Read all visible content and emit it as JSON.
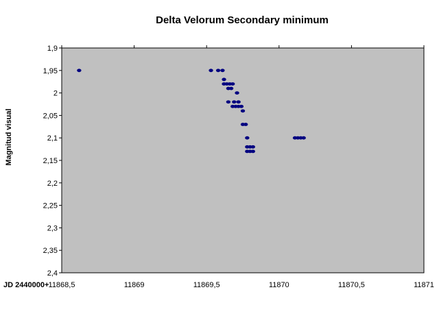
{
  "chart_data": {
    "type": "scatter",
    "title": "Delta Velorum Secondary minimum",
    "xlabel": "JD 2440000+",
    "ylabel": "Magnitud visual",
    "xlim": [
      11868.5,
      11871
    ],
    "ylim": [
      1.9,
      2.4
    ],
    "y_reversed": true,
    "grid": false,
    "legend": "none",
    "x_ticks": [
      {
        "value": 11868.5,
        "label": "11868,5"
      },
      {
        "value": 11869,
        "label": "11869"
      },
      {
        "value": 11869.5,
        "label": "11869,5"
      },
      {
        "value": 11870,
        "label": "11870"
      },
      {
        "value": 11870.5,
        "label": "11870,5"
      },
      {
        "value": 11871,
        "label": "11871"
      }
    ],
    "y_ticks": [
      {
        "value": 1.9,
        "label": "1,9"
      },
      {
        "value": 1.95,
        "label": "1,95"
      },
      {
        "value": 2.0,
        "label": "2"
      },
      {
        "value": 2.05,
        "label": "2,05"
      },
      {
        "value": 2.1,
        "label": "2,1"
      },
      {
        "value": 2.15,
        "label": "2,15"
      },
      {
        "value": 2.2,
        "label": "2,2"
      },
      {
        "value": 2.25,
        "label": "2,25"
      },
      {
        "value": 2.3,
        "label": "2,3"
      },
      {
        "value": 2.35,
        "label": "2,35"
      },
      {
        "value": 2.4,
        "label": "2,4"
      }
    ],
    "colors": {
      "plot_bg": "#c0c0c0",
      "marker": "#000080"
    },
    "series": [
      {
        "name": "Magnitud visual",
        "points": [
          [
            11868.62,
            1.95
          ],
          [
            11869.53,
            1.95
          ],
          [
            11869.58,
            1.95
          ],
          [
            11869.61,
            1.95
          ],
          [
            11869.62,
            1.97
          ],
          [
            11869.62,
            1.98
          ],
          [
            11869.64,
            1.98
          ],
          [
            11869.66,
            1.98
          ],
          [
            11869.68,
            1.98
          ],
          [
            11869.65,
            1.99
          ],
          [
            11869.67,
            1.99
          ],
          [
            11869.71,
            2.0
          ],
          [
            11869.65,
            2.02
          ],
          [
            11869.69,
            2.02
          ],
          [
            11869.72,
            2.02
          ],
          [
            11869.68,
            2.03
          ],
          [
            11869.7,
            2.03
          ],
          [
            11869.72,
            2.03
          ],
          [
            11869.74,
            2.03
          ],
          [
            11869.75,
            2.04
          ],
          [
            11869.75,
            2.07
          ],
          [
            11869.77,
            2.07
          ],
          [
            11869.78,
            2.1
          ],
          [
            11870.11,
            2.1
          ],
          [
            11870.13,
            2.1
          ],
          [
            11870.15,
            2.1
          ],
          [
            11870.17,
            2.1
          ],
          [
            11869.78,
            2.12
          ],
          [
            11869.8,
            2.12
          ],
          [
            11869.82,
            2.12
          ],
          [
            11869.78,
            2.13
          ],
          [
            11869.8,
            2.13
          ],
          [
            11869.82,
            2.13
          ]
        ]
      }
    ]
  }
}
